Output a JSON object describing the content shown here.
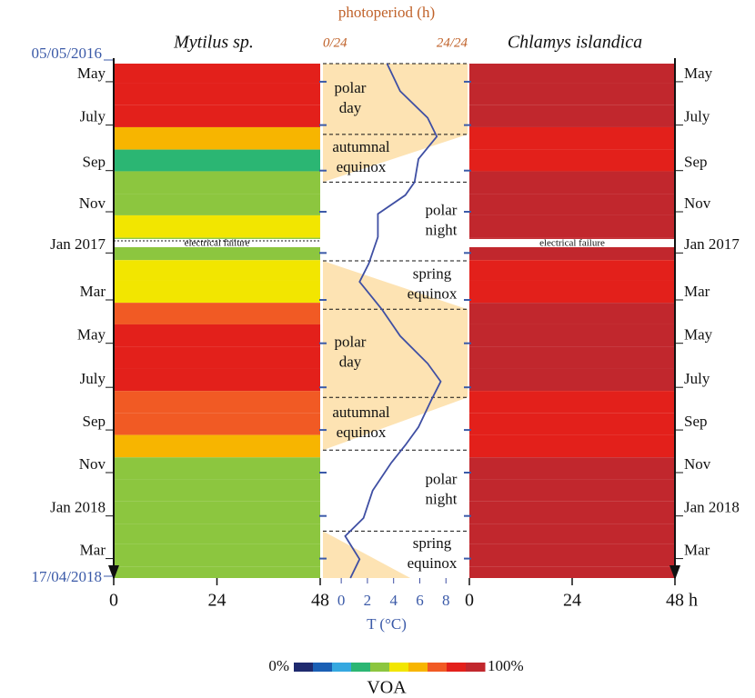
{
  "chart_data": {
    "type": "heatmap",
    "top_label": "photoperiod (h)",
    "start_date": "05/05/2016",
    "end_date": "17/04/2018",
    "ylim": [
      0,
      712
    ],
    "yticks": [
      {
        "value": 15,
        "label": "May"
      },
      {
        "value": 75,
        "label": "July"
      },
      {
        "value": 138,
        "label": "Sep"
      },
      {
        "value": 195,
        "label": "Nov"
      },
      {
        "value": 252,
        "label": "Jan 2017"
      },
      {
        "value": 317,
        "label": "Mar"
      },
      {
        "value": 377,
        "label": "May"
      },
      {
        "value": 438,
        "label": "July"
      },
      {
        "value": 497,
        "label": "Sep"
      },
      {
        "value": 556,
        "label": "Nov"
      },
      {
        "value": 616,
        "label": "Jan 2018"
      },
      {
        "value": 675,
        "label": "Mar"
      }
    ],
    "row_edges": [
      0,
      27,
      57,
      88,
      119,
      149,
      180,
      210,
      241,
      272,
      300,
      331,
      361,
      392,
      422,
      453,
      484,
      514,
      545,
      575,
      606,
      637,
      665,
      696,
      712
    ],
    "series": [
      {
        "name": "Mytilus sp.",
        "xlim": [
          0,
          48
        ],
        "xticks": [
          0,
          24,
          48
        ],
        "values": [
          85,
          85,
          80,
          65,
          35,
          40,
          45,
          50,
          45,
          50,
          55,
          75,
          85,
          85,
          80,
          70,
          70,
          60,
          45,
          45,
          45,
          45,
          40,
          40
        ]
      },
      {
        "name": "Chlamys islandica",
        "xlim": [
          0,
          48
        ],
        "xticks": [
          0,
          24,
          {
            "value": 48,
            "label": "48 h"
          }
        ],
        "values": [
          92,
          90,
          90,
          88,
          88,
          90,
          90,
          90,
          90,
          88,
          88,
          90,
          90,
          90,
          90,
          88,
          88,
          88,
          90,
          90,
          90,
          90,
          90,
          90
        ]
      }
    ],
    "annotations": [
      "electrical failure",
      "electrical failure"
    ],
    "photoperiod": {
      "xlim": [
        0,
        24
      ],
      "xticks": [
        {
          "value": 0,
          "label": "0/24"
        },
        {
          "value": 24,
          "label": "24/24"
        }
      ],
      "color": "#fde3b3",
      "x": [
        0,
        98,
        164,
        273,
        340,
        462,
        535,
        647,
        712
      ],
      "values": [
        24,
        24,
        0,
        0,
        24,
        24,
        0,
        0,
        14.5
      ]
    },
    "temperature": {
      "label": "T (°C)",
      "color": "#3f4fa3",
      "xlim": [
        -1.4,
        9.65
      ],
      "xticks": [
        0,
        2,
        4,
        6,
        8
      ],
      "x": [
        0,
        38,
        75,
        101,
        132,
        164,
        182,
        208,
        240,
        277,
        302,
        340,
        377,
        415,
        440,
        465,
        503,
        528,
        553,
        591,
        629,
        654,
        686,
        712
      ],
      "values": [
        3.5,
        4.5,
        6.6,
        7.3,
        5.9,
        5.6,
        4.9,
        2.8,
        2.8,
        2.1,
        1.4,
        3.1,
        4.5,
        6.6,
        7.6,
        6.9,
        5.9,
        4.9,
        3.8,
        2.4,
        1.7,
        0.3,
        1.4,
        0.7
      ]
    },
    "seasons": [
      {
        "lines": [
          "polar",
          "day"
        ],
        "start": 0,
        "end": 98
      },
      {
        "lines": [
          "autumnal",
          "equinox"
        ],
        "start": 98,
        "end": 164
      },
      {
        "lines": [
          "polar",
          "night"
        ],
        "start": 164,
        "end": 273
      },
      {
        "lines": [
          "spring",
          "equinox"
        ],
        "start": 273,
        "end": 340
      },
      {
        "lines": [
          "polar",
          "day"
        ],
        "start": 340,
        "end": 462
      },
      {
        "lines": [
          "autumnal",
          "equinox"
        ],
        "start": 462,
        "end": 535
      },
      {
        "lines": [
          "polar",
          "night"
        ],
        "start": 535,
        "end": 647
      },
      {
        "lines": [
          "spring",
          "equinox"
        ],
        "start": 647,
        "end": 712
      }
    ],
    "colorbar": {
      "label": "VOA",
      "ticks": [
        {
          "value": 0,
          "label": "0%"
        },
        {
          "value": 100,
          "label": "100%"
        }
      ],
      "colors": [
        "#1f2a6e",
        "#1a5fb4",
        "#35a8e0",
        "#2bb673",
        "#8cc63f",
        "#f2e600",
        "#f7b500",
        "#f15a24",
        "#e3201b",
        "#c1272d"
      ]
    }
  }
}
